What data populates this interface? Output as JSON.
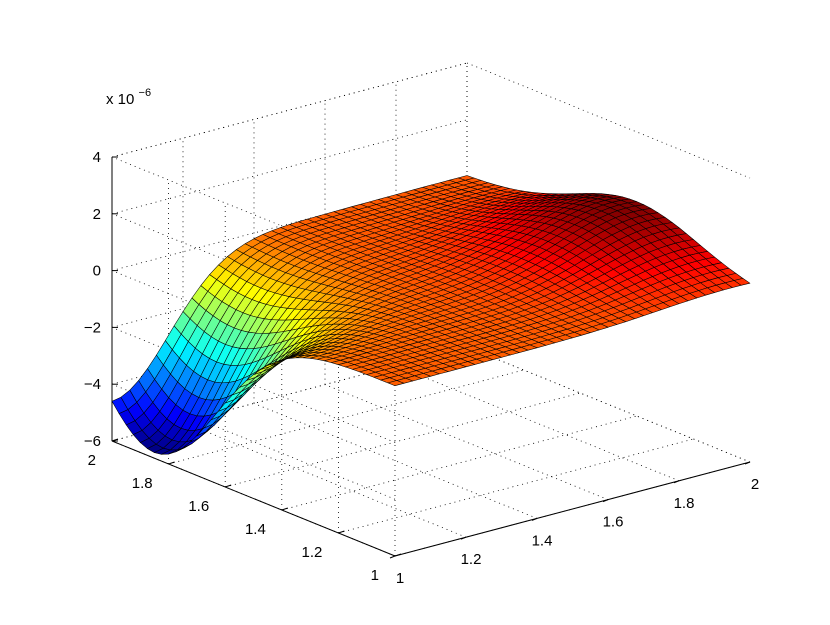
{
  "chart_data": {
    "type": "surface",
    "title": "",
    "xlabel": "",
    "ylabel": "",
    "zlabel": "",
    "z_exponent_label": "x 10",
    "z_exponent_power": "−6",
    "z_scale": 1e-06,
    "xlim": [
      1,
      2
    ],
    "ylim": [
      1,
      2
    ],
    "zlim": [
      -6,
      4
    ],
    "x_ticks": [
      1,
      1.2,
      1.4,
      1.6,
      1.8,
      2
    ],
    "x_tick_labels": [
      "1",
      "1.2",
      "1.4",
      "1.6",
      "1.8",
      "2"
    ],
    "y_ticks": [
      1,
      1.2,
      1.4,
      1.6,
      1.8,
      2
    ],
    "y_tick_labels": [
      "1",
      "1.2",
      "1.4",
      "1.6",
      "1.8",
      "2"
    ],
    "z_ticks": [
      -6,
      -4,
      -2,
      0,
      2,
      4
    ],
    "z_tick_labels": [
      "−6",
      "−4",
      "−2",
      "0",
      "2",
      "4"
    ],
    "grid": true,
    "colormap": "jet",
    "mesh_resolution": 41,
    "surface": {
      "description_of_shape": "Gaussian trough near x=1, y=1.85 (min about -5.8) and Gaussian ridge near x=1.95, y=1.4 (max about +1.6), flat near 0 elsewhere",
      "features": [
        {
          "kind": "trough",
          "x0": 1.0,
          "y0": 1.85,
          "amplitude": -5.8,
          "sigma_x": 0.16,
          "sigma_y": 0.22
        },
        {
          "kind": "ridge",
          "x0": 1.95,
          "y0": 1.4,
          "amplitude": 1.6,
          "sigma_x": 0.2,
          "sigma_y": 0.22
        }
      ]
    }
  }
}
